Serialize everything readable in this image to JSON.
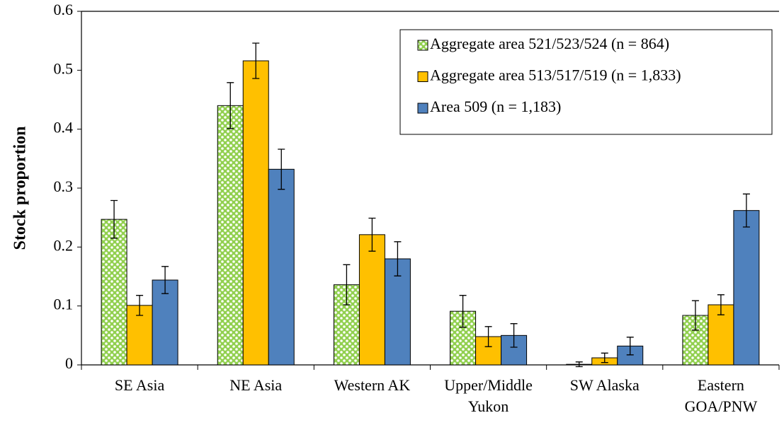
{
  "chart_data": {
    "type": "bar",
    "y_label": "Stock proportion",
    "categories": [
      "SE Asia",
      "NE Asia",
      "Western AK",
      "Upper/Middle Yukon",
      "SW Alaska",
      "Eastern GOA/PNW"
    ],
    "series": [
      {
        "name": "Aggregate area 521/523/524 (n = 864)",
        "color": "#92d050",
        "pattern": "dots",
        "values": [
          0.247,
          0.44,
          0.136,
          0.091,
          0.001,
          0.084
        ],
        "errors": [
          0.032,
          0.039,
          0.034,
          0.027,
          0.004,
          0.025
        ]
      },
      {
        "name": "Aggregate area 513/517/519 (n = 1,833)",
        "color": "#ffc000",
        "values": [
          0.101,
          0.516,
          0.221,
          0.048,
          0.012,
          0.102
        ],
        "errors": [
          0.017,
          0.03,
          0.028,
          0.017,
          0.008,
          0.017
        ]
      },
      {
        "name": "Area 509 (n = 1,183)",
        "color": "#4f81bd",
        "values": [
          0.144,
          0.332,
          0.18,
          0.05,
          0.032,
          0.262
        ],
        "errors": [
          0.023,
          0.034,
          0.029,
          0.02,
          0.015,
          0.028
        ]
      }
    ],
    "ylim": [
      0,
      0.6
    ],
    "yticks": [
      0,
      0.1,
      0.2,
      0.3,
      0.4,
      0.5,
      0.6
    ],
    "grid": false,
    "legend": "top-right"
  }
}
